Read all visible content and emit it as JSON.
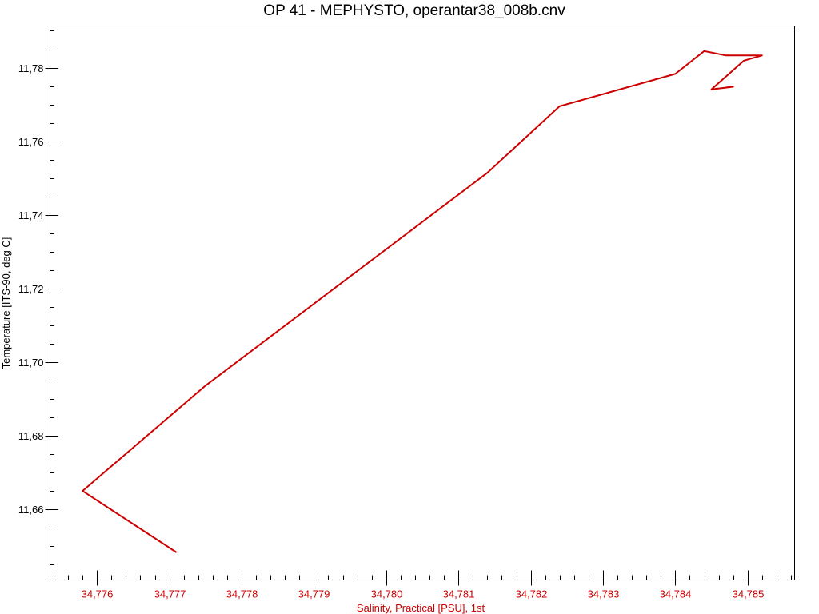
{
  "chart_data": {
    "type": "line",
    "title": "OP 41 - MEPHYSTO, operantar38_008b.cnv",
    "xlabel": "Salinity, Practical [PSU], 1st",
    "ylabel": "Temperature [ITS-90, deg C]",
    "xlim": [
      34.77535,
      34.78565
    ],
    "ylim": [
      11.6408,
      11.7913
    ],
    "xticks": [
      34.776,
      34.777,
      34.778,
      34.779,
      34.78,
      34.781,
      34.782,
      34.783,
      34.784,
      34.785
    ],
    "xtick_labels": [
      "34,776",
      "34,777",
      "34,778",
      "34,779",
      "34,780",
      "34,781",
      "34,782",
      "34,783",
      "34,784",
      "34,785"
    ],
    "yticks": [
      11.66,
      11.68,
      11.7,
      11.72,
      11.74,
      11.76,
      11.78
    ],
    "ytick_labels": [
      "11,66",
      "11,68",
      "11,70",
      "11,72",
      "11,74",
      "11,76",
      "11,78"
    ],
    "x_axis_color": "#cc0000",
    "line_color": "#cc0000",
    "grid": false,
    "series": [
      {
        "x": [
          34.7771,
          34.7758,
          34.7775,
          34.7814,
          34.7824,
          34.784,
          34.7844,
          34.7847,
          34.7852,
          34.78495,
          34.7845,
          34.7848,
          34.7847
        ],
        "y": [
          11.6483,
          11.665,
          11.6936,
          11.7514,
          11.7695,
          11.7783,
          11.7845,
          11.7833,
          11.7833,
          11.7819,
          11.7741,
          11.7748,
          11.7746
        ]
      }
    ]
  }
}
